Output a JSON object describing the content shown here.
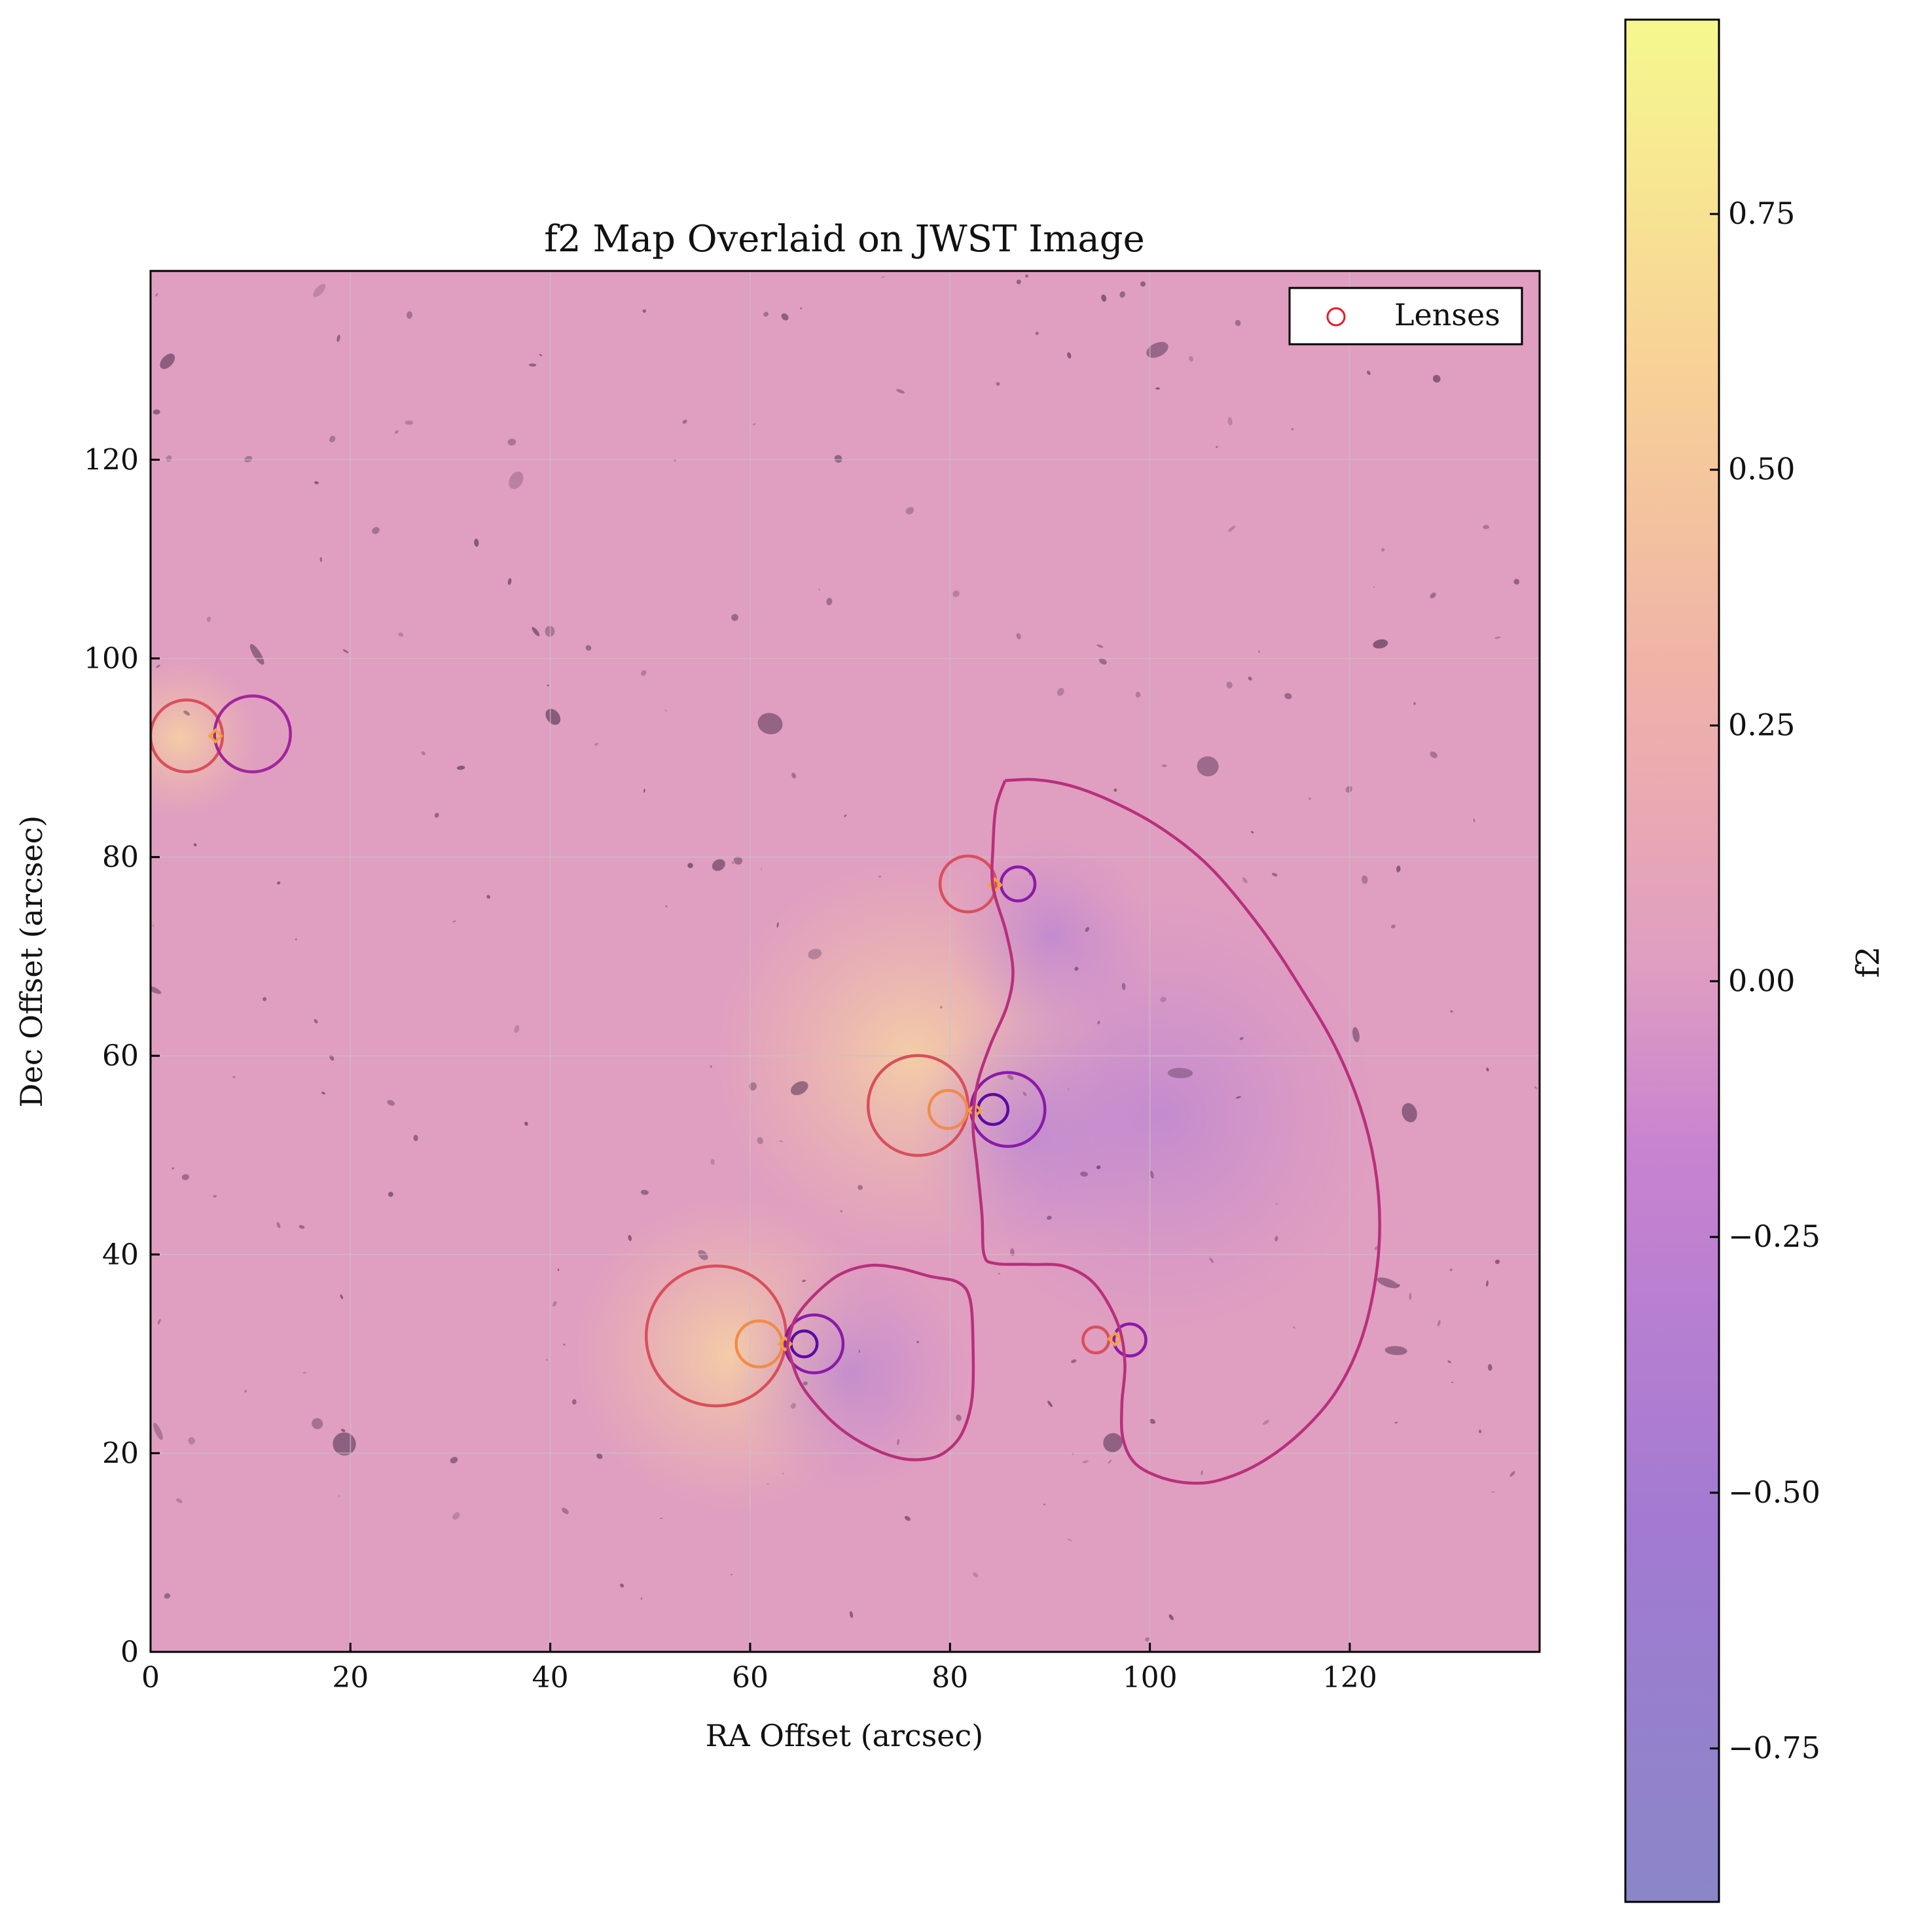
{
  "chart_data": {
    "type": "heatmap",
    "title": "f2 Map Overlaid on JWST Image",
    "xlabel": "RA Offset (arcsec)",
    "ylabel": "Dec Offset (arcsec)",
    "xlim": [
      0,
      139
    ],
    "ylim": [
      0,
      139
    ],
    "x_ticks": [
      0,
      20,
      40,
      60,
      80,
      100,
      120
    ],
    "y_ticks": [
      0,
      20,
      40,
      60,
      80,
      100,
      120
    ],
    "grid": true,
    "legend": {
      "placement": "top-right",
      "entries": [
        {
          "label": "Lenses",
          "marker": "open-circle",
          "color": "#e8192c"
        }
      ]
    },
    "colorbar": {
      "label": "f2",
      "range": [
        -0.9,
        0.94
      ],
      "ticks": [
        0.75,
        0.5,
        0.25,
        0.0,
        -0.25,
        -0.5,
        -0.75
      ],
      "tick_labels": [
        "0.75",
        "0.50",
        "0.25",
        "0.00",
        "−0.25",
        "−0.50",
        "−0.75"
      ],
      "colormap": "plasma",
      "alpha": 0.5
    },
    "background_colors": {
      "base": "#e09ec0",
      "positive_glow": "#f0c0a8",
      "negative_glow": "#c48cd6"
    },
    "lenses": [
      {
        "x": 6.5,
        "y": 92.2
      },
      {
        "x": 84.5,
        "y": 77.2
      },
      {
        "x": 82.5,
        "y": 54.5
      },
      {
        "x": 63.5,
        "y": 31.0
      },
      {
        "x": 96.5,
        "y": 31.5
      }
    ],
    "contours": [
      {
        "level": "positive",
        "color": "#d94f5c",
        "center": [
          3.6,
          92.2
        ],
        "r": 3.6
      },
      {
        "level": "negative",
        "color": "#a0259c",
        "center": [
          10.2,
          92.4
        ],
        "r": 3.8
      },
      {
        "level": "positive",
        "color": "#d94f5c",
        "center": [
          81.8,
          77.3
        ],
        "r": 2.8
      },
      {
        "level": "negative",
        "color": "#8a1aa8",
        "center": [
          86.8,
          77.3
        ],
        "r": 1.7
      },
      {
        "level": "positive",
        "color": "#d94f5c",
        "center": [
          76.8,
          55.0
        ],
        "r": 5.0
      },
      {
        "level": "positive",
        "color": "#f08c4a",
        "center": [
          79.8,
          54.6
        ],
        "r": 1.9
      },
      {
        "level": "negative",
        "color": "#8a1aa8",
        "center": [
          85.8,
          54.6
        ],
        "r": 3.7
      },
      {
        "level": "negative",
        "color": "#5d0aa6",
        "center": [
          84.3,
          54.6
        ],
        "r": 1.5
      },
      {
        "level": "positive",
        "color": "#d94f5c",
        "center": [
          56.6,
          31.8
        ],
        "r": 7.0
      },
      {
        "level": "positive",
        "color": "#f08c4a",
        "center": [
          60.9,
          31.0
        ],
        "r": 2.3
      },
      {
        "level": "negative",
        "color": "#8a1aa8",
        "center": [
          66.4,
          31.0
        ],
        "r": 2.9
      },
      {
        "level": "negative",
        "color": "#5d0aa6",
        "center": [
          65.4,
          31.0
        ],
        "r": 1.3
      },
      {
        "level": "positive",
        "color": "#d94f5c",
        "center": [
          94.6,
          31.4
        ],
        "r": 1.3
      },
      {
        "level": "negative",
        "color": "#8a1aa8",
        "center": [
          98.0,
          31.4
        ],
        "r": 1.6
      }
    ],
    "critical_curves": [
      {
        "color": "#b8307c",
        "points": [
          [
            85.5,
            87.7
          ],
          [
            88.5,
            87.8
          ],
          [
            92,
            87.2
          ],
          [
            96,
            85.7
          ],
          [
            101,
            83
          ],
          [
            106,
            79
          ],
          [
            111,
            73
          ],
          [
            115,
            67
          ],
          [
            118.5,
            61
          ],
          [
            121,
            55
          ],
          [
            122.5,
            49
          ],
          [
            123,
            43
          ],
          [
            122.5,
            37
          ],
          [
            121,
            31
          ],
          [
            118.5,
            26
          ],
          [
            115,
            22
          ],
          [
            111,
            19
          ],
          [
            107,
            17.3
          ],
          [
            104,
            17
          ],
          [
            101,
            17.6
          ],
          [
            98.5,
            19
          ],
          [
            97.3,
            21.5
          ],
          [
            97.2,
            25
          ],
          [
            97.5,
            29
          ],
          [
            96.8,
            33
          ],
          [
            94.5,
            37
          ],
          [
            91.5,
            38.8
          ],
          [
            88,
            39
          ],
          [
            84.5,
            39.1
          ],
          [
            83.4,
            40
          ],
          [
            83.2,
            44
          ],
          [
            82.7,
            49
          ],
          [
            82.3,
            53
          ],
          [
            82.7,
            57
          ],
          [
            84,
            61
          ],
          [
            85.7,
            65
          ],
          [
            86.3,
            68.5
          ],
          [
            85.6,
            72.5
          ],
          [
            84.3,
            77
          ],
          [
            84.3,
            81
          ],
          [
            84.6,
            85
          ],
          [
            85.5,
            87.7
          ]
        ]
      },
      {
        "color": "#b8307c",
        "points": [
          [
            63.7,
            30.8
          ],
          [
            64.5,
            33.5
          ],
          [
            66.5,
            36
          ],
          [
            69,
            38
          ],
          [
            72,
            38.9
          ],
          [
            75,
            38.6
          ],
          [
            78,
            37.8
          ],
          [
            80.8,
            37.2
          ],
          [
            82.0,
            35.5
          ],
          [
            82.3,
            31
          ],
          [
            82.2,
            25.5
          ],
          [
            81.2,
            22
          ],
          [
            79.5,
            20.1
          ],
          [
            77.5,
            19.4
          ],
          [
            75,
            19.5
          ],
          [
            72,
            20.6
          ],
          [
            69,
            22.5
          ],
          [
            66.5,
            25
          ],
          [
            64.8,
            27.5
          ],
          [
            63.7,
            30.8
          ]
        ]
      }
    ],
    "glows": [
      {
        "center": [
          76,
          60
        ],
        "r": 20,
        "sign": "positive"
      },
      {
        "center": [
          58,
          30
        ],
        "r": 16,
        "sign": "positive"
      },
      {
        "center": [
          3,
          92
        ],
        "r": 8,
        "sign": "positive"
      },
      {
        "center": [
          88,
          52
        ],
        "r": 12,
        "sign": "negative"
      },
      {
        "center": [
          101,
          54
        ],
        "r": 22,
        "sign": "negative"
      },
      {
        "center": [
          90,
          72
        ],
        "r": 10,
        "sign": "negative"
      },
      {
        "center": [
          70,
          28
        ],
        "r": 12,
        "sign": "negative"
      }
    ]
  }
}
